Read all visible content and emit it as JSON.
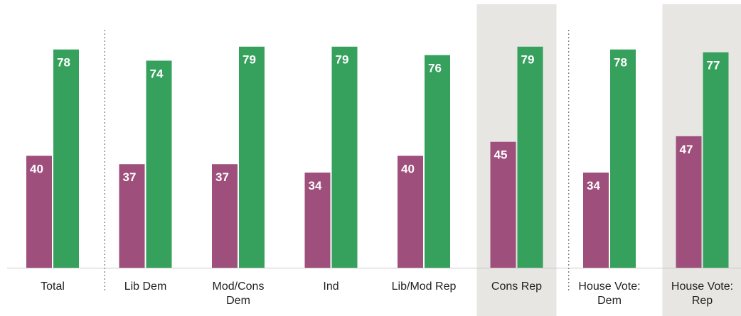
{
  "chart_data": {
    "type": "bar",
    "categories": [
      [
        "Total"
      ],
      [
        "Lib Dem"
      ],
      [
        "Mod/Cons",
        "Dem"
      ],
      [
        "Ind"
      ],
      [
        "Lib/Mod Rep"
      ],
      [
        "Cons Rep"
      ],
      [
        "House Vote:",
        "Dem"
      ],
      [
        "House Vote:",
        "Rep"
      ]
    ],
    "series": [
      {
        "color": "#9e4f7b",
        "values": [
          40,
          37,
          37,
          34,
          40,
          45,
          34,
          47
        ]
      },
      {
        "color": "#36a15c",
        "values": [
          78,
          74,
          79,
          79,
          76,
          79,
          78,
          77
        ]
      }
    ],
    "highlighted_categories": [
      5,
      7
    ],
    "highlight_color": "#e8e6e3",
    "dividers_after": [
      0,
      5
    ],
    "xlabel": "",
    "ylabel": "",
    "ylim": [
      0,
      100
    ],
    "grid": false,
    "legend": "none"
  }
}
